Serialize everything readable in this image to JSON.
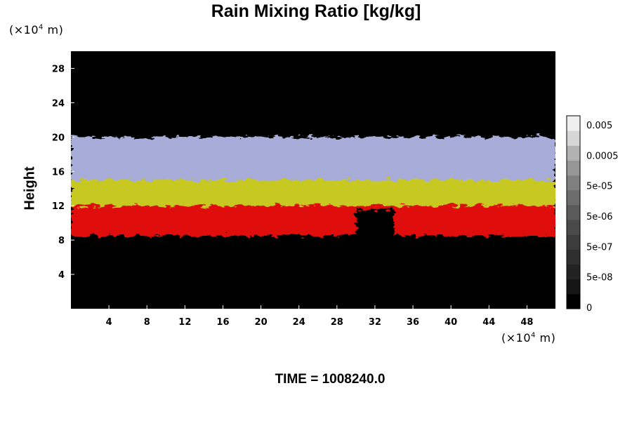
{
  "chart_data": {
    "type": "heatmap",
    "title": "Rain Mixing Ratio [kg/kg]",
    "ylabel": "Height",
    "y_unit": "(×10⁴ m)",
    "x_unit": "(×10⁴ m)",
    "xlim": [
      0,
      51
    ],
    "ylim": [
      0,
      30
    ],
    "x_ticks": [
      4,
      8,
      12,
      16,
      20,
      24,
      28,
      32,
      36,
      40,
      44,
      48
    ],
    "y_ticks": [
      4,
      8,
      12,
      16,
      20,
      24,
      28
    ],
    "colorbar": {
      "labels": [
        "0.005",
        "0.0005",
        "5e-05",
        "5e-06",
        "5e-07",
        "5e-08",
        "0"
      ],
      "levels": 12,
      "colors": [
        "#000000",
        "#151515",
        "#222222",
        "#2f2f2f",
        "#3c3c3c",
        "#4a4a4a",
        "#5a5a5a",
        "#6c6c6c",
        "#808080",
        "#969696",
        "#b2b2b2",
        "#d6d6d6",
        "#efefef"
      ]
    },
    "bands": [
      {
        "name": "red",
        "y_range": [
          8.5,
          12.5
        ],
        "color": "#e01010"
      },
      {
        "name": "yellow",
        "y_range": [
          12,
          16
        ],
        "color": "#c8c820"
      },
      {
        "name": "blue-white",
        "y_range": [
          15,
          20
        ],
        "color": "#a8acd8"
      }
    ],
    "gap_x_range": [
      30,
      34
    ]
  },
  "footer": {
    "time": "TIME = 1008240.0"
  }
}
